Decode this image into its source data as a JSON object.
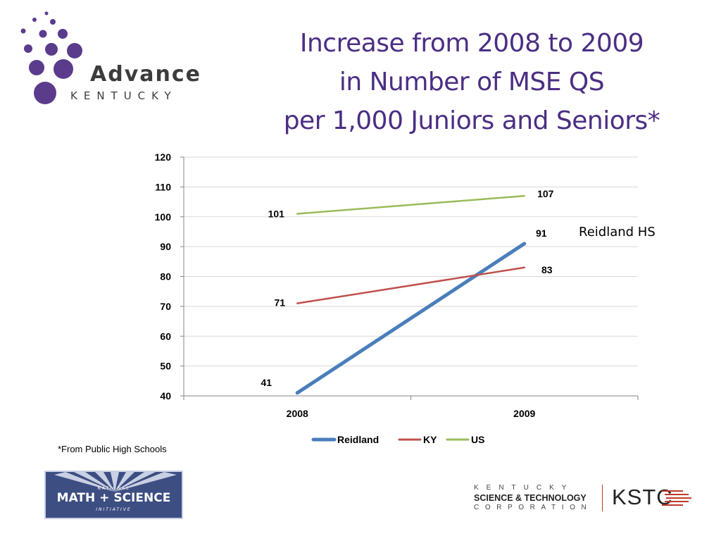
{
  "title": {
    "line1": "Increase from 2008 to 2009",
    "line2": "in Number of MSE QS",
    "line3": "per 1,000 Juniors and Seniors*"
  },
  "brand": {
    "name": "Advance",
    "sub": "KENTUCKY",
    "dots_color": "#5b3b8c"
  },
  "chart_data": {
    "type": "line",
    "categories": [
      "2008",
      "2009"
    ],
    "ylim": [
      40,
      120
    ],
    "yticks": [
      120,
      110,
      100,
      90,
      80,
      70,
      60,
      50,
      40
    ],
    "series": [
      {
        "name": "Reidland",
        "values": [
          41,
          91
        ],
        "color": "#4a7ebb",
        "width": 5
      },
      {
        "name": "KY",
        "values": [
          71,
          83
        ],
        "color": "#c0504d",
        "width": 2.5
      },
      {
        "name": "US",
        "values": [
          101,
          107
        ],
        "color": "#9bbb59",
        "width": 2.5
      }
    ],
    "annotation": "Reidland HS",
    "legend_position": "bottom",
    "grid": true
  },
  "footnote": "*From Public High Schools",
  "nmsi": {
    "top": "NATIONAL",
    "main": "MATH + SCIENCE",
    "bottom": "INITIATIVE"
  },
  "kstc": {
    "line1": "KENTUCKY",
    "line2": "SCIENCE & TECHNOLOGY",
    "line3": "CORPORATION",
    "mark": "KSTC",
    "accent": "#c0392b"
  }
}
